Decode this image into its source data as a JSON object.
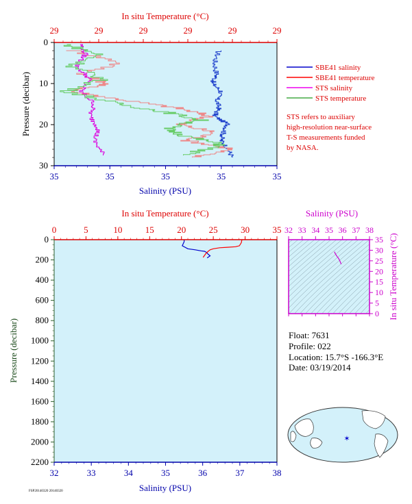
{
  "chart_data": [
    {
      "type": "line",
      "top_axis_title": "In situ Temperature (°C)",
      "top_tick_labels": [
        "29",
        "29",
        "29",
        "29",
        "29",
        "29"
      ],
      "xlabel": "Salinity (PSU)",
      "bottom_tick_labels": [
        "35",
        "35",
        "35",
        "35",
        "35"
      ],
      "ylabel": "Pressure (decibar)",
      "ylim": [
        30,
        0
      ],
      "y_ticks": [
        0,
        10,
        20,
        30
      ],
      "legend": [
        {
          "name": "SBE41 salinity",
          "color": "#0000cc"
        },
        {
          "name": "SBE41 temperature",
          "color": "#ff0000"
        },
        {
          "name": "STS salinity",
          "color": "#ee00ee"
        },
        {
          "name": "STS temperature",
          "color": "#44aa44"
        }
      ],
      "note_lines": [
        "STS refers to auxiliary",
        "high-resolution near-surface",
        "T-S measurements funded",
        "by NASA."
      ],
      "series": [
        {
          "key": "sbe41_sal",
          "color": "#2244cc",
          "pos": [
            0.74,
            0.72,
            0.73,
            0.71,
            0.75,
            0.73,
            0.74,
            0.72,
            0.78,
            0.76,
            0.75,
            0.78,
            0.8
          ],
          "p": [
            2,
            5,
            8,
            10,
            12,
            14,
            16,
            18,
            20,
            22,
            24,
            26,
            28
          ]
        },
        {
          "key": "sbe41_temp",
          "color": "#ee8888",
          "pos": [
            0.08,
            0.3,
            0.12,
            0.24,
            0.08,
            0.3,
            0.55,
            0.7,
            0.56,
            0.72,
            0.6,
            0.8,
            0.62
          ],
          "p": [
            2,
            5,
            8,
            10,
            12,
            14,
            16,
            18,
            20,
            22,
            24,
            26,
            28
          ]
        },
        {
          "key": "sts_sal",
          "color": "#dd00dd",
          "pos": [
            0.12,
            0.14,
            0.1,
            0.16,
            0.12,
            0.18,
            0.16,
            0.2,
            0.18,
            0.22
          ],
          "p": [
            0.5,
            3,
            6,
            9,
            12,
            15,
            18,
            21,
            24,
            27.5
          ]
        },
        {
          "key": "sts_temp",
          "color": "#66cc66",
          "pos": [
            0.05,
            0.2,
            0.08,
            0.22,
            0.06,
            0.28,
            0.5,
            0.66,
            0.5,
            0.6,
            0.76,
            0.58
          ],
          "p": [
            0.5,
            3,
            6,
            9,
            12,
            15,
            17,
            19,
            21,
            23,
            25,
            27.5
          ]
        }
      ]
    },
    {
      "type": "line",
      "top_axis_title": "In situ Temperature (°C)",
      "xlim_temp": [
        0,
        35
      ],
      "temp_ticks": [
        0,
        5,
        10,
        15,
        20,
        25,
        30,
        35
      ],
      "xlabel": "Salinity (PSU)",
      "xlim_sal": [
        32,
        38
      ],
      "sal_ticks": [
        32,
        33,
        34,
        35,
        36,
        37,
        38
      ],
      "ylabel": "Pressure (decibar)",
      "ylim": [
        2200,
        0
      ],
      "y_ticks": [
        0,
        200,
        400,
        600,
        800,
        1000,
        1200,
        1400,
        1600,
        1800,
        2000,
        2200
      ],
      "series": [
        {
          "name": "Salinity",
          "color": "#0000cc",
          "x": [
            35.5,
            35.5,
            35.45,
            35.6,
            35.8,
            35.95,
            36.05,
            36.1,
            36.15,
            36.2,
            36.12
          ],
          "p": [
            0,
            20,
            60,
            90,
            100,
            110,
            115,
            125,
            145,
            160,
            180
          ]
        },
        {
          "name": "Temperature",
          "color": "#ff0000",
          "x": [
            29.5,
            29.4,
            29.1,
            28.5,
            27.2,
            26.0,
            25.0,
            24.5,
            24.2,
            23.8,
            23.4
          ],
          "p": [
            0,
            30,
            60,
            70,
            75,
            80,
            90,
            100,
            115,
            140,
            175
          ]
        }
      ]
    },
    {
      "type": "line",
      "xlabel": "Salinity (PSU)",
      "xlim": [
        32,
        38
      ],
      "x_ticks": [
        32,
        33,
        34,
        35,
        36,
        37,
        38
      ],
      "ylabel": "In situ Temperature (°C)",
      "ylim": [
        0,
        35
      ],
      "y_ticks": [
        0,
        5,
        10,
        15,
        20,
        25,
        30,
        35
      ],
      "series": [
        {
          "color": "#cc00cc",
          "x": [
            35.4,
            35.45,
            35.5,
            35.6,
            35.7,
            35.8,
            35.85,
            35.9
          ],
          "y": [
            29.3,
            28.5,
            28.0,
            27.0,
            26.2,
            25.0,
            24.2,
            23.4
          ]
        }
      ]
    }
  ],
  "float_info": {
    "float": "Float:  7631",
    "profile": "Profile:  022",
    "location": "Location:  15.7°S  -166.3°E",
    "date": "Date:  03/19/2014"
  },
  "map": {
    "marker_lon": -166.3,
    "marker_lat": -15.7
  },
  "footer": "FSP20140320 20140320",
  "colors": {
    "panel_bg": "#d3f1fa",
    "axis_red": "#dd0000",
    "axis_blue": "#0000aa",
    "axis_magenta": "#cc00cc",
    "axis_green": "#2d5f2d"
  }
}
